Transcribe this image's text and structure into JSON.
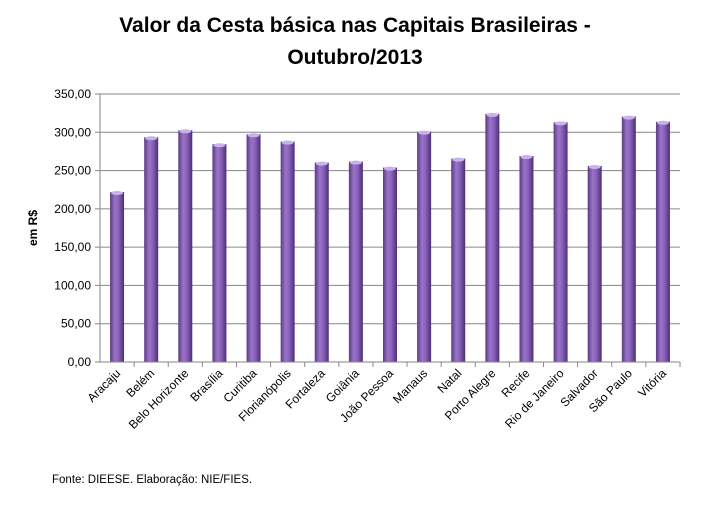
{
  "chart_data": {
    "type": "bar",
    "title_lines": [
      "Valor da Cesta básica nas Capitais Brasileiras -",
      "Outubro/2013"
    ],
    "ylabel": "em R$",
    "xlabel": "",
    "ylim": [
      0,
      350
    ],
    "yticks": [
      "0,00",
      "50,00",
      "100,00",
      "150,00",
      "200,00",
      "250,00",
      "300,00",
      "350,00"
    ],
    "grid": true,
    "bar_color": "#7b52a8",
    "categories": [
      "Aracaju",
      "Belém",
      "Belo Horizonte",
      "Brasília",
      "Curitiba",
      "Florianópolis",
      "Fortaleza",
      "Goiânia",
      "João Pessoa",
      "Manaus",
      "Natal",
      "Porto Alegre",
      "Recife",
      "Rio de Janeiro",
      "Salvador",
      "São Paulo",
      "Vitória"
    ],
    "values": [
      222,
      293.5,
      302.6,
      284.4,
      297.4,
      287.9,
      260.4,
      261.7,
      253.9,
      300.8,
      265.6,
      324,
      269,
      313,
      256,
      320.5,
      313.7
    ]
  },
  "source": "Fonte: DIEESE. Elaboração: NIE/FIES."
}
